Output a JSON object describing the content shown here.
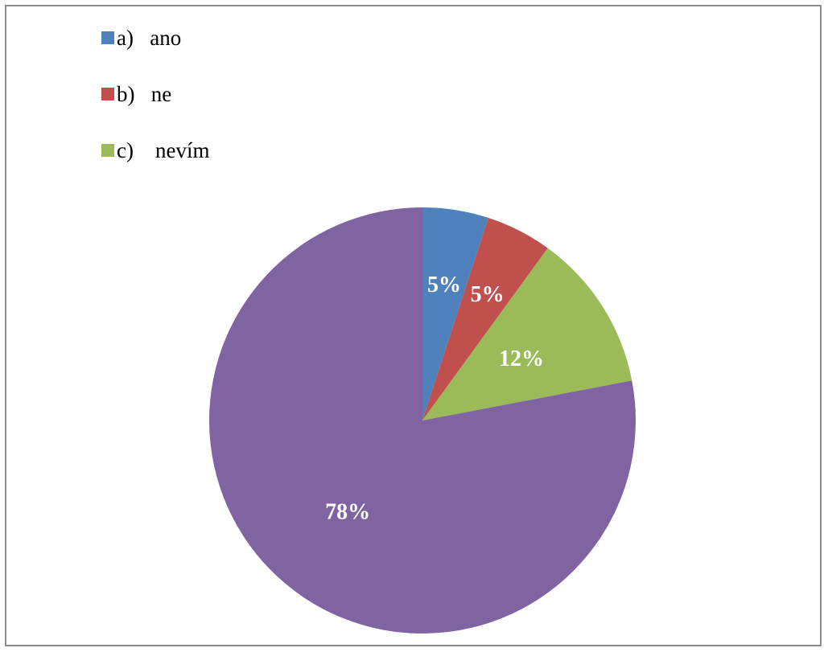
{
  "chart_data": {
    "type": "pie",
    "legend_position": "top-left",
    "slices": [
      {
        "label": "a)   ano",
        "value": 5,
        "display": "5%",
        "color": "#4F81BD",
        "in_legend": true
      },
      {
        "label": "b)   ne",
        "value": 5,
        "display": "5%",
        "color": "#C0504D",
        "in_legend": true
      },
      {
        "label": "c)    nevím",
        "value": 12,
        "display": "12%",
        "color": "#9BBB59",
        "in_legend": true
      },
      {
        "label": "",
        "value": 78,
        "display": "78%",
        "color": "#8064A2",
        "in_legend": false
      }
    ]
  }
}
